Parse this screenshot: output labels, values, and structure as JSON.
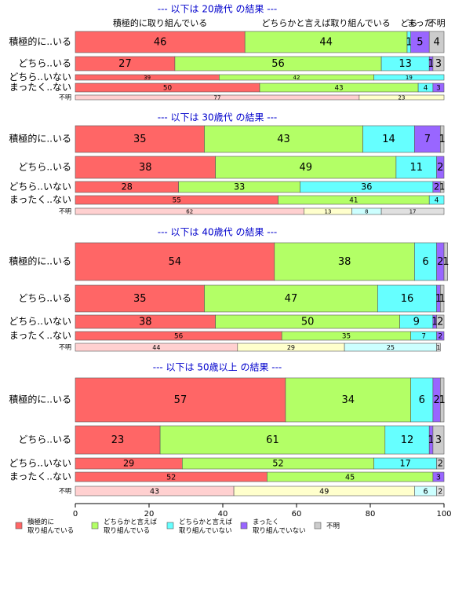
{
  "chart_data": {
    "type": "bar",
    "stacked": true,
    "orientation": "horizontal",
    "xlim": [
      0,
      100
    ],
    "xticks": [
      0,
      20,
      40,
      60,
      80,
      100
    ],
    "column_labels": [
      "積極的に取り組んでいる",
      "どちらかと言えば取り組んでいる",
      "どち",
      "まった",
      "不明"
    ],
    "series": [
      {
        "name": [
          "積極的に",
          "取り組んでいる"
        ],
        "color": "#ff6666",
        "light_color": "#ffd0d0"
      },
      {
        "name": [
          "どちらかと言えば",
          "取り組んでいる"
        ],
        "color": "#b3ff66",
        "light_color": "#ffffcc"
      },
      {
        "name": [
          "どちらかと言えば",
          "取り組んでいない"
        ],
        "color": "#66ffff",
        "light_color": "#ccffff"
      },
      {
        "name": [
          "まったく",
          "取り組んでいない"
        ],
        "color": "#9966ff",
        "light_color": "#e0ccff"
      },
      {
        "name": [
          "不明"
        ],
        "color": "#cccccc",
        "light_color": "#e0e0e0"
      }
    ],
    "panels": [
      {
        "title": "--- 以下は 20歳代 の結果 ---",
        "categories": [
          "積極的に..いる",
          "どちら..いる",
          "どちら..いない",
          "まったく..ない",
          "不明"
        ],
        "values": [
          [
            46,
            44,
            1,
            5,
            4
          ],
          [
            27,
            56,
            13,
            1,
            3
          ],
          [
            39,
            42,
            19,
            0,
            0
          ],
          [
            50,
            43,
            4,
            3,
            0
          ],
          [
            77,
            23,
            0,
            0,
            0
          ]
        ]
      },
      {
        "title": "--- 以下は 30歳代 の結果 ---",
        "categories": [
          "積極的に..いる",
          "どちら..いる",
          "どちら..いない",
          "まったく..ない",
          "不明"
        ],
        "values": [
          [
            35,
            43,
            14,
            7,
            1
          ],
          [
            38,
            49,
            11,
            2,
            0
          ],
          [
            28,
            33,
            36,
            2,
            1
          ],
          [
            55,
            41,
            4,
            0,
            0
          ],
          [
            62,
            13,
            8,
            0,
            17
          ]
        ]
      },
      {
        "title": "--- 以下は 40歳代 の結果 ---",
        "categories": [
          "積極的に..いる",
          "どちら..いる",
          "どちら..いない",
          "まったく..ない",
          "不明"
        ],
        "values": [
          [
            54,
            38,
            6,
            2,
            1
          ],
          [
            35,
            47,
            16,
            1,
            1
          ],
          [
            38,
            50,
            9,
            1,
            2
          ],
          [
            56,
            35,
            7,
            2,
            0
          ],
          [
            44,
            29,
            25,
            0,
            1
          ]
        ]
      },
      {
        "title": "--- 以下は 50歳以上 の結果 ---",
        "categories": [
          "積極的に..いる",
          "どちら..いる",
          "どちら..いない",
          "まったく..ない",
          "不明"
        ],
        "values": [
          [
            57,
            34,
            6,
            2,
            1
          ],
          [
            23,
            61,
            12,
            1,
            3
          ],
          [
            29,
            52,
            17,
            0,
            2
          ],
          [
            52,
            45,
            0,
            3,
            0
          ],
          [
            43,
            49,
            6,
            0,
            2
          ]
        ]
      }
    ]
  }
}
